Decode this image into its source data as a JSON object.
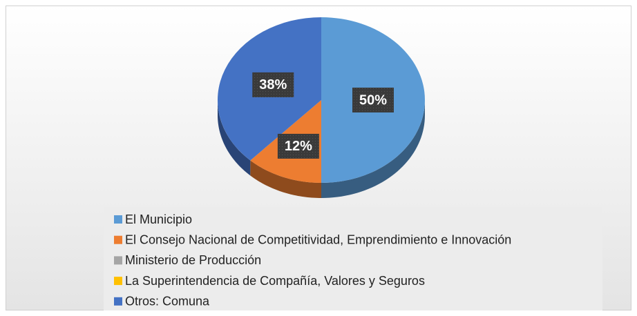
{
  "chart_data": {
    "type": "pie",
    "categories": [
      "El Municipio",
      "El Consejo Nacional de Competitividad, Emprendimiento e Innovación",
      "Ministerio de Producción",
      "La Superintendencia de Compañía, Valores y Seguros",
      "Otros: Comuna"
    ],
    "values": [
      50,
      12,
      0,
      0,
      38
    ],
    "value_labels": [
      "50%",
      "12%",
      null,
      null,
      "38%"
    ],
    "colors": [
      "#5b9bd5",
      "#ed7d31",
      "#a5a5a5",
      "#ffc000",
      "#4472c4"
    ],
    "legend": "bottom"
  }
}
